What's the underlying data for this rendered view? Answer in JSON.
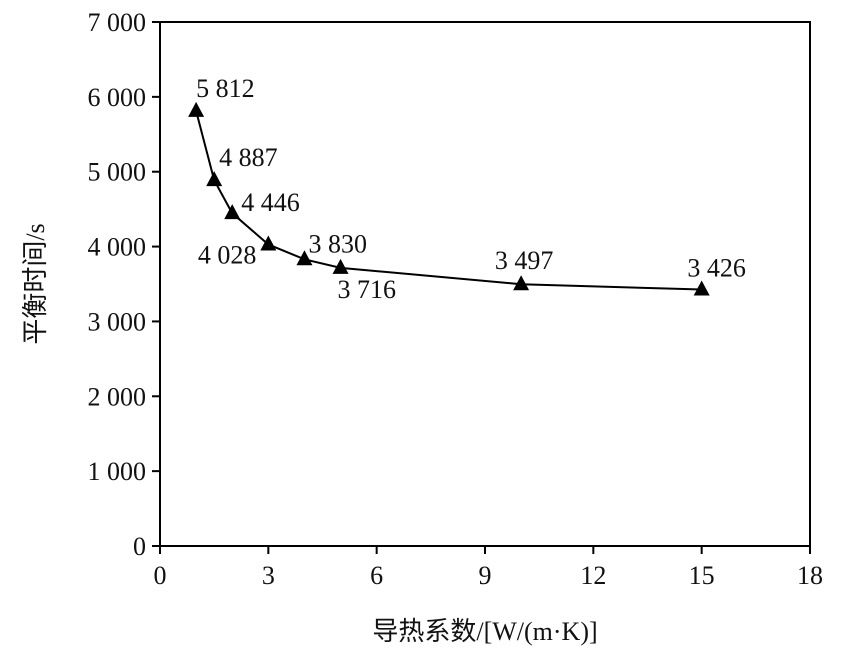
{
  "chart_data": {
    "type": "line",
    "xlabel": "导热系数/[W/(m·K)]",
    "ylabel": "平衡时间/s",
    "xlim": [
      0,
      18
    ],
    "ylim": [
      0,
      7000
    ],
    "x_ticks": [
      0,
      3,
      6,
      9,
      12,
      15,
      18
    ],
    "x_tick_labels": [
      "0",
      "3",
      "6",
      "9",
      "12",
      "15",
      "18"
    ],
    "y_ticks": [
      0,
      1000,
      2000,
      3000,
      4000,
      5000,
      6000,
      7000
    ],
    "y_tick_labels": [
      "0",
      "1 000",
      "2 000",
      "3 000",
      "4 000",
      "5 000",
      "6 000",
      "7 000"
    ],
    "grid": false,
    "marker": "triangle",
    "series": [
      {
        "x": [
          1,
          1.5,
          2,
          3,
          4,
          5,
          10,
          15
        ],
        "y": [
          5812,
          4887,
          4446,
          4028,
          3830,
          3716,
          3497,
          3426
        ],
        "labels": [
          "5 812",
          "4 887",
          "4 446",
          "4 028",
          "3 830",
          "3 716",
          "3 497",
          "3 426"
        ]
      }
    ]
  }
}
